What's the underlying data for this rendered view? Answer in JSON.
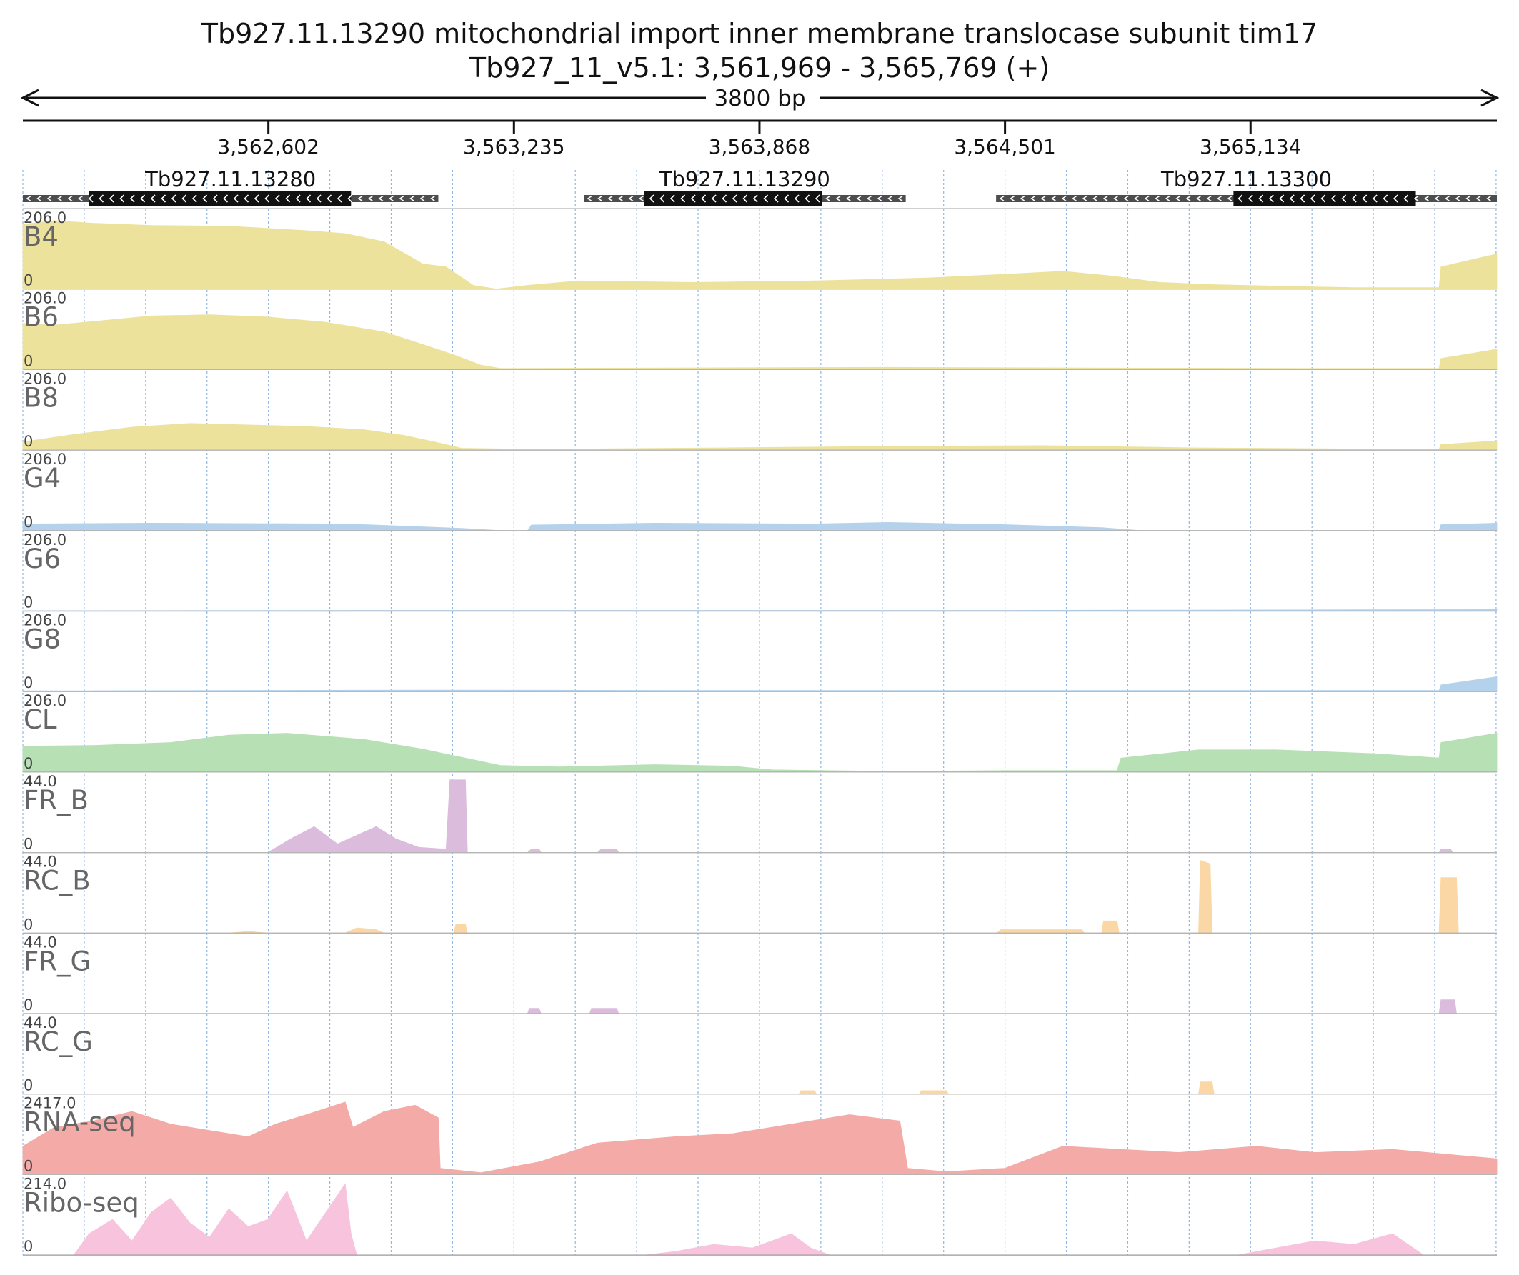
{
  "chart_data": {
    "type": "area",
    "title": "Tb927.11.13290  mitochondrial import inner membrane translocase subunit tim17",
    "subtitle": "Tb927_11_v5.1: 3,561,969 - 3,565,769 (+)",
    "region": {
      "chrom": "Tb927_11_v5.1",
      "start": 3561969,
      "end": 3565769,
      "strand": "+"
    },
    "scale_label": "3800 bp",
    "ticks": [
      {
        "pos": 3562602,
        "label": "3,562,602"
      },
      {
        "pos": 3563235,
        "label": "3,563,235"
      },
      {
        "pos": 3563868,
        "label": "3,563,868"
      },
      {
        "pos": 3564501,
        "label": "3,564,501"
      },
      {
        "pos": 3565134,
        "label": "3,565,134"
      }
    ],
    "genes": [
      {
        "name": "Tb927.11.13280",
        "start": 3561969,
        "end": 3563040,
        "cds_start": 3562140,
        "cds_end": 3562815,
        "strand": "-"
      },
      {
        "name": "Tb927.11.13290",
        "start": 3563415,
        "end": 3564245,
        "cds_start": 3563570,
        "cds_end": 3564030,
        "strand": "-"
      },
      {
        "name": "Tb927.11.13300",
        "start": 3564478,
        "end": 3565769,
        "cds_start": 3565090,
        "cds_end": 3565560,
        "strand": "-"
      }
    ],
    "tracks": [
      {
        "name": "B4",
        "max": "206.0",
        "min": "0",
        "color": "#ede29c",
        "points": [
          [
            3561969,
            175
          ],
          [
            3562050,
            185
          ],
          [
            3562150,
            178
          ],
          [
            3562300,
            172
          ],
          [
            3562500,
            170
          ],
          [
            3562700,
            158
          ],
          [
            3562800,
            150
          ],
          [
            3562900,
            128
          ],
          [
            3562960,
            92
          ],
          [
            3563000,
            68
          ],
          [
            3563060,
            60
          ],
          [
            3563130,
            10
          ],
          [
            3563190,
            0
          ],
          [
            3563270,
            10
          ],
          [
            3563400,
            22
          ],
          [
            3563700,
            18
          ],
          [
            3564000,
            22
          ],
          [
            3564300,
            30
          ],
          [
            3564500,
            40
          ],
          [
            3564650,
            48
          ],
          [
            3564780,
            35
          ],
          [
            3564900,
            18
          ],
          [
            3565040,
            12
          ],
          [
            3565200,
            8
          ],
          [
            3565400,
            4
          ],
          [
            3565620,
            4
          ],
          [
            3565625,
            60
          ],
          [
            3565769,
            95
          ]
        ]
      },
      {
        "name": "B6",
        "max": "206.0",
        "min": "0",
        "color": "#ede29c",
        "points": [
          [
            3561969,
            125
          ],
          [
            3562050,
            120
          ],
          [
            3562150,
            130
          ],
          [
            3562300,
            145
          ],
          [
            3562450,
            148
          ],
          [
            3562600,
            142
          ],
          [
            3562750,
            128
          ],
          [
            3562900,
            102
          ],
          [
            3563000,
            68
          ],
          [
            3563080,
            40
          ],
          [
            3563150,
            12
          ],
          [
            3563200,
            3
          ],
          [
            3563500,
            4
          ],
          [
            3564200,
            6
          ],
          [
            3564800,
            4
          ],
          [
            3565300,
            3
          ],
          [
            3565620,
            3
          ],
          [
            3565625,
            30
          ],
          [
            3565769,
            55
          ]
        ]
      },
      {
        "name": "B8",
        "max": "206.0",
        "min": "0",
        "color": "#ede29c",
        "points": [
          [
            3561969,
            22
          ],
          [
            3562100,
            42
          ],
          [
            3562250,
            62
          ],
          [
            3562400,
            72
          ],
          [
            3562550,
            68
          ],
          [
            3562700,
            64
          ],
          [
            3562850,
            55
          ],
          [
            3562950,
            40
          ],
          [
            3563030,
            22
          ],
          [
            3563100,
            5
          ],
          [
            3563300,
            2
          ],
          [
            3564200,
            10
          ],
          [
            3564600,
            12
          ],
          [
            3565000,
            6
          ],
          [
            3565400,
            3
          ],
          [
            3565620,
            3
          ],
          [
            3565625,
            15
          ],
          [
            3565769,
            25
          ]
        ]
      },
      {
        "name": "G4",
        "max": "206.0",
        "min": "0",
        "color": "#b4d2ec",
        "points": [
          [
            3561969,
            18
          ],
          [
            3562300,
            20
          ],
          [
            3562800,
            18
          ],
          [
            3563100,
            6
          ],
          [
            3563200,
            0
          ],
          [
            3563270,
            0
          ],
          [
            3563280,
            15
          ],
          [
            3563600,
            20
          ],
          [
            3564000,
            18
          ],
          [
            3564200,
            22
          ],
          [
            3564500,
            16
          ],
          [
            3564750,
            8
          ],
          [
            3564850,
            0
          ],
          [
            3565620,
            0
          ],
          [
            3565625,
            16
          ],
          [
            3565769,
            20
          ]
        ]
      },
      {
        "name": "G6",
        "max": "206.0",
        "min": "0",
        "color": "#b4d2ec",
        "points": [
          [
            3561969,
            1
          ],
          [
            3563000,
            2
          ],
          [
            3564500,
            2
          ],
          [
            3565200,
            3
          ],
          [
            3565769,
            4
          ]
        ]
      },
      {
        "name": "G8",
        "max": "206.0",
        "min": "0",
        "color": "#b4d2ec",
        "points": [
          [
            3561969,
            2
          ],
          [
            3563000,
            4
          ],
          [
            3563700,
            3
          ],
          [
            3564500,
            3
          ],
          [
            3565620,
            3
          ],
          [
            3565625,
            18
          ],
          [
            3565769,
            40
          ]
        ]
      },
      {
        "name": "CL",
        "max": "206.0",
        "min": "0",
        "color": "#b7e0b5",
        "points": [
          [
            3561969,
            70
          ],
          [
            3562150,
            72
          ],
          [
            3562350,
            80
          ],
          [
            3562500,
            100
          ],
          [
            3562650,
            105
          ],
          [
            3562850,
            88
          ],
          [
            3563000,
            62
          ],
          [
            3563100,
            40
          ],
          [
            3563200,
            18
          ],
          [
            3563350,
            14
          ],
          [
            3563600,
            20
          ],
          [
            3563800,
            16
          ],
          [
            3563900,
            6
          ],
          [
            3564200,
            2
          ],
          [
            3564500,
            4
          ],
          [
            3564790,
            4
          ],
          [
            3564800,
            38
          ],
          [
            3565000,
            60
          ],
          [
            3565200,
            60
          ],
          [
            3565450,
            50
          ],
          [
            3565620,
            38
          ],
          [
            3565625,
            80
          ],
          [
            3565769,
            105
          ]
        ]
      },
      {
        "name": "FR_B",
        "max": "44.0",
        "min": "0",
        "color": "#dcbcdc",
        "points": [
          [
            3562600,
            0
          ],
          [
            3562660,
            8
          ],
          [
            3562720,
            15
          ],
          [
            3562780,
            5
          ],
          [
            3562830,
            10
          ],
          [
            3562880,
            15
          ],
          [
            3562930,
            8
          ],
          [
            3562990,
            3
          ],
          [
            3563060,
            2
          ],
          [
            3563070,
            42
          ],
          [
            3563110,
            42
          ],
          [
            3563115,
            0
          ],
          [
            3563270,
            0
          ],
          [
            3563280,
            2
          ],
          [
            3563300,
            2
          ],
          [
            3563305,
            0
          ],
          [
            3563450,
            0
          ],
          [
            3563460,
            2
          ],
          [
            3563500,
            2
          ],
          [
            3563505,
            0
          ],
          [
            3565620,
            0
          ],
          [
            3565625,
            2
          ],
          [
            3565650,
            2
          ],
          [
            3565655,
            0
          ]
        ]
      },
      {
        "name": "RC_B",
        "max": "44.0",
        "min": "0",
        "color": "#fbd7a5",
        "points": [
          [
            3562500,
            0
          ],
          [
            3562550,
            1
          ],
          [
            3562600,
            0
          ],
          [
            3562800,
            0
          ],
          [
            3562830,
            3
          ],
          [
            3562880,
            2
          ],
          [
            3562900,
            0
          ],
          [
            3563080,
            0
          ],
          [
            3563085,
            5
          ],
          [
            3563110,
            5
          ],
          [
            3563115,
            0
          ],
          [
            3564480,
            0
          ],
          [
            3564490,
            2
          ],
          [
            3564700,
            2
          ],
          [
            3564705,
            0
          ],
          [
            3564750,
            0
          ],
          [
            3564755,
            7
          ],
          [
            3564790,
            7
          ],
          [
            3564795,
            0
          ],
          [
            3565000,
            0
          ],
          [
            3565005,
            42
          ],
          [
            3565030,
            40
          ],
          [
            3565035,
            0
          ],
          [
            3565620,
            0
          ],
          [
            3565625,
            32
          ],
          [
            3565665,
            32
          ],
          [
            3565670,
            0
          ]
        ]
      },
      {
        "name": "FR_G",
        "max": "44.0",
        "min": "0",
        "color": "#dcbcdc",
        "points": [
          [
            3563270,
            0
          ],
          [
            3563275,
            3
          ],
          [
            3563300,
            3
          ],
          [
            3563305,
            0
          ],
          [
            3563430,
            0
          ],
          [
            3563435,
            3
          ],
          [
            3563500,
            3
          ],
          [
            3563505,
            0
          ],
          [
            3565620,
            0
          ],
          [
            3565625,
            8
          ],
          [
            3565660,
            8
          ],
          [
            3565665,
            0
          ]
        ]
      },
      {
        "name": "RC_G",
        "max": "44.0",
        "min": "0",
        "color": "#fbd7a5",
        "points": [
          [
            3563970,
            0
          ],
          [
            3563975,
            2
          ],
          [
            3564010,
            2
          ],
          [
            3564015,
            0
          ],
          [
            3564280,
            0
          ],
          [
            3564285,
            2
          ],
          [
            3564350,
            2
          ],
          [
            3564355,
            0
          ],
          [
            3565000,
            0
          ],
          [
            3565005,
            7
          ],
          [
            3565035,
            7
          ],
          [
            3565040,
            0
          ]
        ]
      },
      {
        "name": "RNA-seq",
        "max": "2417.0",
        "min": "0",
        "color": "#f4aaa6",
        "points": [
          [
            3561969,
            900
          ],
          [
            3562050,
            1500
          ],
          [
            3562150,
            1700
          ],
          [
            3562250,
            2000
          ],
          [
            3562350,
            1600
          ],
          [
            3562450,
            1400
          ],
          [
            3562550,
            1200
          ],
          [
            3562620,
            1600
          ],
          [
            3562700,
            1900
          ],
          [
            3562800,
            2300
          ],
          [
            3562820,
            1500
          ],
          [
            3562900,
            2000
          ],
          [
            3562980,
            2200
          ],
          [
            3563040,
            1800
          ],
          [
            3563045,
            200
          ],
          [
            3563150,
            60
          ],
          [
            3563300,
            400
          ],
          [
            3563450,
            1000
          ],
          [
            3563650,
            1200
          ],
          [
            3563800,
            1300
          ],
          [
            3563950,
            1600
          ],
          [
            3564100,
            1900
          ],
          [
            3564230,
            1700
          ],
          [
            3564250,
            200
          ],
          [
            3564350,
            90
          ],
          [
            3564500,
            200
          ],
          [
            3564650,
            900
          ],
          [
            3564800,
            800
          ],
          [
            3564950,
            700
          ],
          [
            3565150,
            900
          ],
          [
            3565300,
            700
          ],
          [
            3565500,
            800
          ],
          [
            3565769,
            500
          ]
        ]
      },
      {
        "name": "Ribo-seq",
        "max": "214.0",
        "min": "0",
        "color": "#f8c3dd",
        "points": [
          [
            3562100,
            0
          ],
          [
            3562140,
            60
          ],
          [
            3562200,
            100
          ],
          [
            3562250,
            40
          ],
          [
            3562300,
            120
          ],
          [
            3562350,
            160
          ],
          [
            3562400,
            90
          ],
          [
            3562450,
            50
          ],
          [
            3562500,
            130
          ],
          [
            3562550,
            80
          ],
          [
            3562600,
            100
          ],
          [
            3562650,
            180
          ],
          [
            3562700,
            40
          ],
          [
            3562750,
            120
          ],
          [
            3562800,
            200
          ],
          [
            3562815,
            60
          ],
          [
            3562830,
            0
          ],
          [
            3563570,
            0
          ],
          [
            3563650,
            10
          ],
          [
            3563750,
            30
          ],
          [
            3563850,
            20
          ],
          [
            3563950,
            60
          ],
          [
            3564000,
            20
          ],
          [
            3564050,
            0
          ],
          [
            3565100,
            0
          ],
          [
            3565200,
            20
          ],
          [
            3565300,
            40
          ],
          [
            3565400,
            30
          ],
          [
            3565500,
            60
          ],
          [
            3565560,
            15
          ],
          [
            3565580,
            0
          ]
        ]
      }
    ]
  }
}
